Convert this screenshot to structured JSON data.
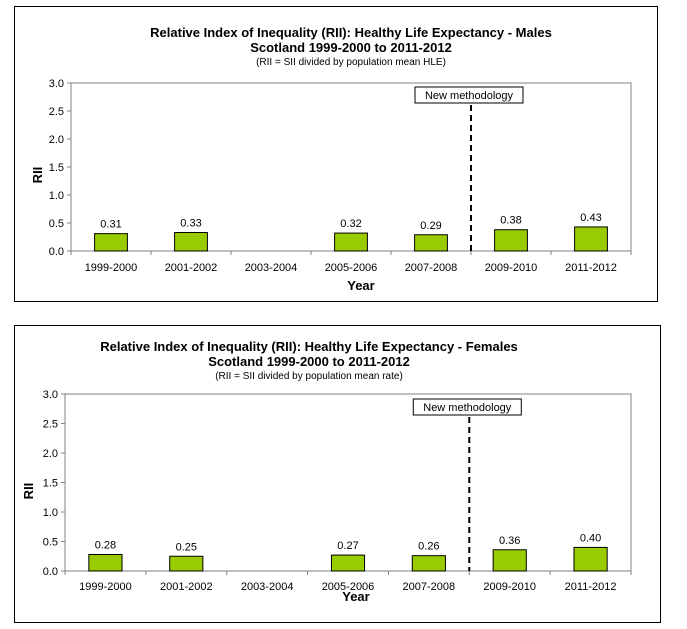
{
  "chart_data": [
    {
      "type": "bar",
      "title_line1": "Relative Index of Inequality (RII):  Healthy Life Expectancy - Males",
      "title_line2": "Scotland 1999-2000 to 2011-2012",
      "subtitle": "(RII = SII divided by population mean HLE)",
      "xlabel": "Year",
      "ylabel": "RII",
      "categories": [
        "1999-2000",
        "2001-2002",
        "2003-2004",
        "2005-2006",
        "2007-2008",
        "2009-2010",
        "2011-2012"
      ],
      "values": [
        0.31,
        0.33,
        null,
        0.32,
        0.29,
        0.38,
        0.43
      ],
      "value_labels": [
        "0.31",
        "0.33",
        "",
        "0.32",
        "0.29",
        "0.38",
        "0.43"
      ],
      "yticks": [
        "0.0",
        "0.5",
        "1.0",
        "1.5",
        "2.0",
        "2.5",
        "3.0"
      ],
      "ylim": [
        0,
        3
      ],
      "annotation": "New methodology",
      "annotation_after_category": "2007-2008",
      "grid": false,
      "bar_color": "#99cc00"
    },
    {
      "type": "bar",
      "title_line1": "Relative Index of Inequality (RII):  Healthy Life Expectancy - Females",
      "title_line2": "Scotland 1999-2000 to 2011-2012",
      "subtitle": "(RII = SII divided by population mean rate)",
      "xlabel": "Year",
      "ylabel": "RII",
      "categories": [
        "1999-2000",
        "2001-2002",
        "2003-2004",
        "2005-2006",
        "2007-2008",
        "2009-2010",
        "2011-2012"
      ],
      "values": [
        0.28,
        0.25,
        null,
        0.27,
        0.26,
        0.36,
        0.4
      ],
      "value_labels": [
        "0.28",
        "0.25",
        "",
        "0.27",
        "0.26",
        "0.36",
        "0.40"
      ],
      "yticks": [
        "0.0",
        "0.5",
        "1.0",
        "1.5",
        "2.0",
        "2.5",
        "3.0"
      ],
      "ylim": [
        0,
        3
      ],
      "annotation": "New methodology",
      "annotation_after_category": "2007-2008",
      "grid": false,
      "bar_color": "#99cc00"
    }
  ]
}
